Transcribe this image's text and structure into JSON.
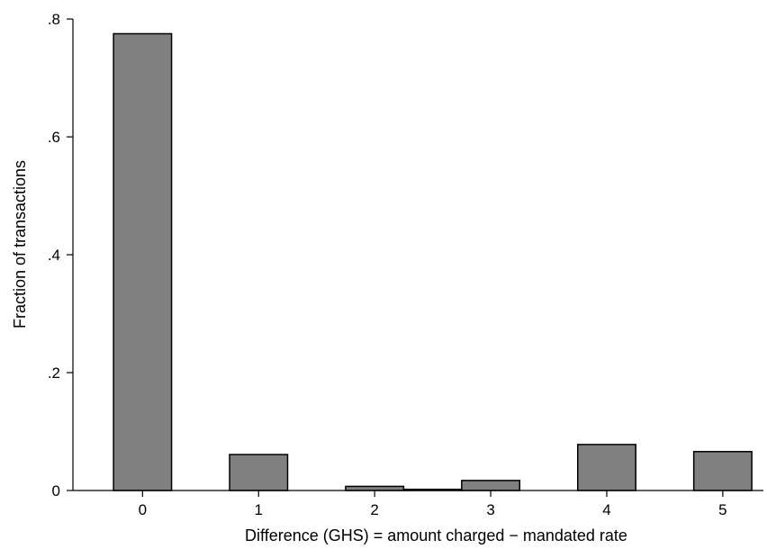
{
  "chart_data": {
    "type": "bar",
    "title": "",
    "xlabel": "Difference (GHS) = amount charged − mandated rate",
    "ylabel": "Fraction of transactions",
    "xlim": [
      -0.6,
      5.35
    ],
    "ylim": [
      0,
      0.82
    ],
    "x_ticks": [
      0,
      1,
      2,
      3,
      4,
      5
    ],
    "x_tick_labels": [
      "0",
      "1",
      "2",
      "3",
      "4",
      "5"
    ],
    "y_ticks": [
      0,
      0.2,
      0.4,
      0.6,
      0.8
    ],
    "y_tick_labels": [
      "0",
      ".2",
      ".4",
      ".6",
      ".8"
    ],
    "bar_width": 0.5,
    "bars": [
      {
        "x": 0,
        "value": 0.775
      },
      {
        "x": 1,
        "value": 0.061
      },
      {
        "x": 2,
        "value": 0.007
      },
      {
        "x": 2.5,
        "value": 0.002
      },
      {
        "x": 3,
        "value": 0.017
      },
      {
        "x": 4,
        "value": 0.078
      },
      {
        "x": 5,
        "value": 0.066
      }
    ],
    "grid": false,
    "legend": "none",
    "colors": {
      "bar_fill": "#808080",
      "bar_stroke": "#000000",
      "axis": "#000000"
    }
  }
}
